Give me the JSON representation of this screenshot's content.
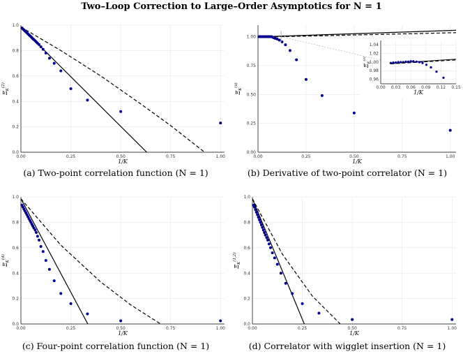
{
  "page_title": "Two–Loop Correction to Large–Order Asymptotics for N = 1",
  "colors": {
    "points": "#00008b",
    "line": "#000000",
    "grid": "#e6e6e6"
  },
  "captions": {
    "a": "(a) Two-point correlation function (N = 1)",
    "b": "(b) Derivative of two-point correlator (N = 1)",
    "c": "(c) Four-point correlation function (N = 1)",
    "d": "(d) Correlator with wigglet insertion (N = 1)"
  },
  "chart_data": [
    {
      "id": "a",
      "type": "scatter",
      "xlabel": "1/K",
      "ylabel": "Ξ_K^(2)",
      "xlim": [
        0,
        1.02
      ],
      "ylim": [
        0,
        1.0
      ],
      "grid": true,
      "xticks": [
        "0.00",
        "0.25",
        "0.50",
        "0.75",
        "1.00"
      ],
      "yticks": [
        "0.0",
        "0.2",
        "0.4",
        "0.6",
        "0.8",
        "1.0"
      ],
      "points": {
        "x": [
          0.005,
          0.01,
          0.015,
          0.02,
          0.025,
          0.03,
          0.035,
          0.04,
          0.045,
          0.05,
          0.055,
          0.06,
          0.065,
          0.0714,
          0.0769,
          0.0833,
          0.0909,
          0.1,
          0.1111,
          0.125,
          0.1429,
          0.1667,
          0.2,
          0.25,
          0.3333,
          0.5,
          1.0
        ],
        "y": [
          0.978,
          0.97,
          0.962,
          0.955,
          0.947,
          0.94,
          0.932,
          0.924,
          0.917,
          0.909,
          0.901,
          0.893,
          0.886,
          0.877,
          0.868,
          0.858,
          0.847,
          0.83,
          0.81,
          0.78,
          0.74,
          0.7,
          0.64,
          0.5,
          0.41,
          0.32,
          0.23
        ]
      },
      "solid_line": {
        "x": [
          0,
          0.63
        ],
        "y": [
          0.985,
          0
        ]
      },
      "dashed_line": {
        "x": [
          0,
          0.2,
          0.4,
          0.6,
          0.75,
          0.92
        ],
        "y": [
          0.985,
          0.8,
          0.6,
          0.38,
          0.21,
          0
        ]
      }
    },
    {
      "id": "b",
      "type": "scatter",
      "xlabel": "1/K",
      "ylabel": "Ξ_K^(∂)",
      "xlim": [
        0,
        1.03
      ],
      "ylim": [
        0,
        1.1
      ],
      "grid": true,
      "xticks": [
        "0.00",
        "0.25",
        "0.50",
        "0.75",
        "1.00"
      ],
      "yticks": [
        "0.00",
        "0.25",
        "0.50",
        "0.75",
        "1.00"
      ],
      "points": {
        "x": [
          0.005,
          0.01,
          0.015,
          0.02,
          0.025,
          0.03,
          0.035,
          0.04,
          0.045,
          0.05,
          0.055,
          0.06,
          0.065,
          0.0714,
          0.0769,
          0.0833,
          0.0909,
          0.1,
          0.1111,
          0.125,
          0.1429,
          0.1667,
          0.2,
          0.25,
          0.3333,
          0.5,
          1.0
        ],
        "y": [
          1.0,
          1.0,
          1.0,
          1.0,
          1.0,
          1.0,
          1.0,
          1.0,
          1.0,
          1.0,
          1.0,
          1.0,
          1.0,
          1.0,
          0.995,
          0.99,
          0.985,
          0.98,
          0.97,
          0.955,
          0.93,
          0.88,
          0.8,
          0.63,
          0.49,
          0.34,
          0.19
        ]
      },
      "solid_line": {
        "x": [
          0,
          1.03
        ],
        "y": [
          0.998,
          1.055
        ]
      },
      "dashed_line": {
        "x": [
          0,
          1.03
        ],
        "y": [
          0.996,
          1.035
        ]
      },
      "inset": {
        "xlim": [
          0,
          0.15
        ],
        "ylim": [
          0.95,
          1.05
        ],
        "xticks": [
          "0.00",
          "0.03",
          "0.06",
          "0.09",
          "0.12",
          "0.15"
        ],
        "yticks": [
          "0.96",
          "0.98",
          "1.00",
          "1.02",
          "1.04"
        ],
        "xlabel": "1/K",
        "ylabel": "Ξ_K^(∂)",
        "points": {
          "x": [
            0.02,
            0.025,
            0.03,
            0.035,
            0.04,
            0.045,
            0.05,
            0.055,
            0.06,
            0.065,
            0.0714,
            0.0769,
            0.0833,
            0.0909,
            0.1,
            0.1111,
            0.125
          ],
          "y": [
            0.998,
            0.999,
            0.999,
            1.0,
            1.0,
            1.0,
            1.001,
            1.001,
            1.002,
            1.002,
            1.001,
            1.0,
            0.998,
            0.994,
            0.988,
            0.978,
            0.964
          ]
        },
        "solid_line": {
          "x": [
            0.02,
            0.15
          ],
          "y": [
            0.997,
            1.007
          ]
        },
        "dashed_line": {
          "x": [
            0.02,
            0.15
          ],
          "y": [
            0.996,
            1.005
          ]
        }
      }
    },
    {
      "id": "c",
      "type": "scatter",
      "xlabel": "1/K",
      "ylabel": "Ξ_K^(4)",
      "xlim": [
        0,
        1.02
      ],
      "ylim": [
        0,
        1.0
      ],
      "grid": true,
      "xticks": [
        "0.00",
        "0.25",
        "0.50",
        "0.75",
        "1.00"
      ],
      "yticks": [
        "0.0",
        "0.2",
        "0.4",
        "0.6",
        "0.8",
        "1.0"
      ],
      "points": {
        "x": [
          0.005,
          0.01,
          0.015,
          0.02,
          0.025,
          0.03,
          0.035,
          0.04,
          0.045,
          0.05,
          0.055,
          0.06,
          0.065,
          0.0714,
          0.0769,
          0.0833,
          0.0909,
          0.1,
          0.1111,
          0.125,
          0.1429,
          0.1667,
          0.2,
          0.25,
          0.3333,
          0.5,
          1.0
        ],
        "y": [
          0.935,
          0.92,
          0.905,
          0.89,
          0.875,
          0.86,
          0.845,
          0.83,
          0.815,
          0.8,
          0.785,
          0.77,
          0.755,
          0.74,
          0.72,
          0.69,
          0.66,
          0.61,
          0.57,
          0.5,
          0.43,
          0.34,
          0.24,
          0.16,
          0.08,
          0.025,
          0.025
        ]
      },
      "solid_line": {
        "x": [
          0,
          0.335
        ],
        "y": [
          0.985,
          0
        ]
      },
      "dashed_line": {
        "x": [
          0,
          0.2,
          0.4,
          0.55,
          0.7
        ],
        "y": [
          0.985,
          0.62,
          0.33,
          0.15,
          0
        ]
      }
    },
    {
      "id": "d",
      "type": "scatter",
      "xlabel": "1/K",
      "ylabel": "Ξ_K^(1,2)",
      "xlim": [
        0,
        1.02
      ],
      "ylim": [
        0,
        1.0
      ],
      "grid": true,
      "xticks": [
        "0.00",
        "0.25",
        "0.50",
        "0.75",
        "1.00"
      ],
      "yticks": [
        "0.0",
        "0.2",
        "0.4",
        "0.6",
        "0.8",
        "1.0"
      ],
      "points": {
        "x": [
          0.005,
          0.01,
          0.015,
          0.02,
          0.025,
          0.03,
          0.035,
          0.04,
          0.045,
          0.05,
          0.055,
          0.06,
          0.065,
          0.0714,
          0.0769,
          0.0833,
          0.0909,
          0.1,
          0.1111,
          0.125,
          0.1429,
          0.1667,
          0.2,
          0.25,
          0.3333,
          0.5,
          1.0
        ],
        "y": [
          0.935,
          0.92,
          0.9,
          0.88,
          0.86,
          0.84,
          0.82,
          0.8,
          0.78,
          0.76,
          0.74,
          0.72,
          0.7,
          0.68,
          0.66,
          0.63,
          0.6,
          0.56,
          0.52,
          0.47,
          0.4,
          0.32,
          0.24,
          0.16,
          0.085,
          0.035,
          0.035
        ]
      },
      "solid_line": {
        "x": [
          0,
          0.26
        ],
        "y": [
          0.985,
          0
        ]
      },
      "dashed_line": {
        "x": [
          0,
          0.15,
          0.3,
          0.44
        ],
        "y": [
          0.985,
          0.55,
          0.22,
          0
        ]
      }
    }
  ]
}
